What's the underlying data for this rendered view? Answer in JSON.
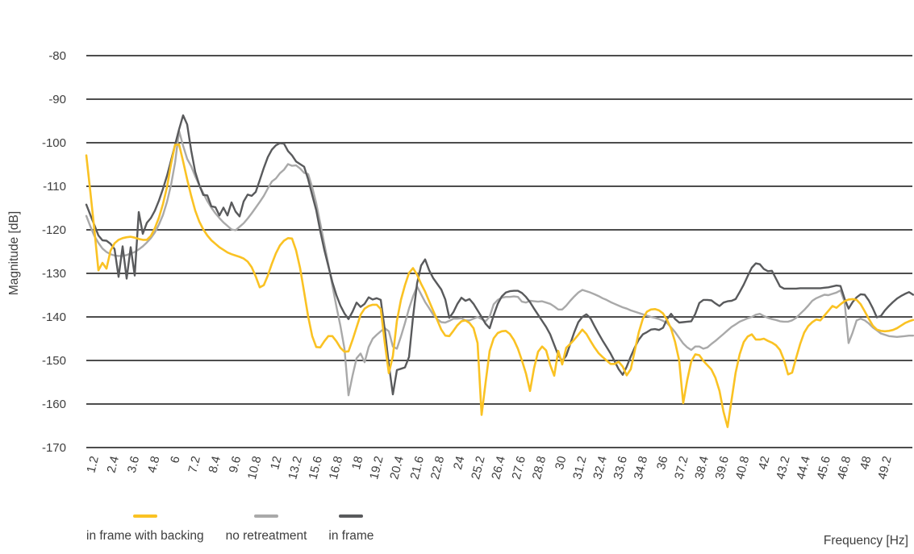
{
  "chart_data": {
    "type": "line",
    "title": "",
    "ylabel": "Magnitude [dB]",
    "xlabel": "Frequency [Hz]",
    "ylim": [
      -170,
      -80
    ],
    "y_tick_labels": [
      "-80",
      "-90",
      "-100",
      "-110",
      "-120",
      "-130",
      "-140",
      "-150",
      "-160",
      "-170"
    ],
    "x_tick_labels": [
      "1.2",
      "2.4",
      "3.6",
      "4.8",
      "6",
      "7.2",
      "8.4",
      "9.6",
      "10.8",
      "12",
      "13.2",
      "15.6",
      "16.8",
      "18",
      "19.2",
      "20.4",
      "21.6",
      "22.8",
      "24",
      "25.2",
      "26.4",
      "27.6",
      "28.8",
      "30",
      "31.2",
      "32.4",
      "33.6",
      "34.8",
      "36",
      "37.2",
      "38.4",
      "39.6",
      "40.8",
      "42",
      "43.2",
      "44.4",
      "45.6",
      "46.8",
      "48",
      "49.2"
    ],
    "grid": "horizontal",
    "legend_position": "bottom-left",
    "colors": {
      "grid": "#4d4d4d",
      "text": "#3e3e3e",
      "in_frame_with_backing": "#fac223",
      "no_retreatment": "#a9a9a9",
      "in_frame": "#595a5c"
    },
    "sampling": {
      "note": "values are magnitude in dB sampled uniformly across the categorical x-axis; x position of sample k = start_tick_index + k * tick_index_step, in units of x-tick indices (ticks evenly spaced)",
      "start_tick_index": -0.437,
      "tick_index_step": 0.1984
    },
    "series": [
      {
        "name": "in frame with backing",
        "color": "#fac223",
        "values": [
          -102.9,
          -111.3,
          -120.0,
          -129.3,
          -127.6,
          -128.9,
          -124.8,
          -123.1,
          -122.3,
          -121.9,
          -121.7,
          -121.6,
          -121.8,
          -122.1,
          -122.3,
          -122.3,
          -121.4,
          -119.6,
          -117.2,
          -114.1,
          -110.2,
          -104.9,
          -100.5,
          -100.4,
          -104.3,
          -108.4,
          -112.2,
          -115.6,
          -118.1,
          -119.9,
          -121.3,
          -122.4,
          -123.2,
          -124.0,
          -124.6,
          -125.2,
          -125.6,
          -125.9,
          -126.2,
          -126.6,
          -127.3,
          -128.6,
          -130.7,
          -133.2,
          -132.7,
          -130.5,
          -127.8,
          -125.4,
          -123.6,
          -122.5,
          -121.9,
          -122.0,
          -124.7,
          -128.8,
          -134.3,
          -139.9,
          -144.4,
          -146.9,
          -147.0,
          -145.6,
          -144.4,
          -144.4,
          -145.6,
          -147.1,
          -148.0,
          -147.9,
          -145.3,
          -142.4,
          -139.5,
          -138.1,
          -137.5,
          -137.2,
          -137.2,
          -138.2,
          -146.0,
          -152.9,
          -149.0,
          -140.9,
          -136.1,
          -132.7,
          -129.9,
          -128.8,
          -130.3,
          -132.4,
          -134.2,
          -136.4,
          -138.6,
          -140.7,
          -142.9,
          -144.3,
          -144.4,
          -143.2,
          -141.9,
          -141.0,
          -140.8,
          -141.4,
          -142.6,
          -146.0,
          -162.5,
          -155.0,
          -147.8,
          -144.9,
          -143.7,
          -143.3,
          -143.2,
          -143.9,
          -145.3,
          -147.3,
          -150.0,
          -153.0,
          -157.0,
          -151.8,
          -148.0,
          -146.8,
          -147.7,
          -151.0,
          -153.5,
          -147.8,
          -150.9,
          -147.1,
          -146.2,
          -145.2,
          -144.1,
          -142.9,
          -143.9,
          -145.5,
          -147.0,
          -148.3,
          -149.2,
          -150.0,
          -150.8,
          -150.8,
          -150.3,
          -151.4,
          -153.4,
          -152.0,
          -147.7,
          -143.5,
          -140.4,
          -138.8,
          -138.3,
          -138.2,
          -138.5,
          -139.2,
          -140.7,
          -142.7,
          -145.8,
          -150.0,
          -159.8,
          -154.5,
          -150.2,
          -148.6,
          -148.8,
          -150.1,
          -151.1,
          -152.1,
          -154.0,
          -157.0,
          -161.8,
          -165.3,
          -159.0,
          -152.8,
          -148.6,
          -145.8,
          -144.5,
          -144.0,
          -145.2,
          -145.2,
          -145.0,
          -145.5,
          -145.9,
          -146.5,
          -147.6,
          -149.9,
          -153.2,
          -152.8,
          -149.4,
          -146.2,
          -143.6,
          -142.1,
          -141.2,
          -140.6,
          -140.8,
          -139.7,
          -138.6,
          -137.5,
          -137.9,
          -137.1,
          -136.4,
          -136.0,
          -135.9,
          -136.1,
          -137.1,
          -138.7,
          -140.4,
          -142.0,
          -142.9,
          -143.2,
          -143.3,
          -143.2,
          -143.0,
          -142.6,
          -142.0,
          -141.4,
          -141.0,
          -140.7
        ]
      },
      {
        "name": "no retreatment",
        "color": "#a9a9a9",
        "values": [
          -116.8,
          -119.2,
          -121.4,
          -123.0,
          -124.3,
          -125.1,
          -125.6,
          -125.9,
          -126.0,
          -126.0,
          -125.8,
          -125.4,
          -125.1,
          -124.5,
          -123.8,
          -122.9,
          -121.9,
          -120.6,
          -118.8,
          -116.6,
          -113.6,
          -109.7,
          -104.6,
          -97.3,
          -100.7,
          -103.7,
          -105.4,
          -107.7,
          -109.7,
          -111.6,
          -113.4,
          -114.9,
          -116.2,
          -117.3,
          -118.3,
          -119.1,
          -119.9,
          -120.1,
          -119.3,
          -118.5,
          -117.4,
          -116.2,
          -114.9,
          -113.6,
          -112.2,
          -110.5,
          -108.9,
          -108.2,
          -107.0,
          -106.2,
          -104.9,
          -105.3,
          -105.2,
          -105.9,
          -106.9,
          -107.2,
          -110.2,
          -113.9,
          -118.5,
          -123.2,
          -127.9,
          -132.8,
          -137.6,
          -142.1,
          -147.3,
          -158.0,
          -153.5,
          -149.5,
          -148.4,
          -150.4,
          -146.9,
          -145.0,
          -144.1,
          -143.3,
          -142.6,
          -143.3,
          -146.8,
          -147.3,
          -144.5,
          -141.4,
          -138.1,
          -135.3,
          -133.0,
          -134.8,
          -136.6,
          -138.0,
          -139.5,
          -140.5,
          -141.2,
          -141.3,
          -140.9,
          -140.4,
          -140.4,
          -140.3,
          -140.8,
          -140.8,
          -140.4,
          -140.0,
          -140.5,
          -141.0,
          -139.9,
          -137.1,
          -136.1,
          -135.6,
          -135.4,
          -135.4,
          -135.3,
          -135.4,
          -136.5,
          -136.7,
          -136.3,
          -136.4,
          -136.5,
          -136.4,
          -136.7,
          -137.0,
          -137.6,
          -138.3,
          -138.3,
          -137.4,
          -136.3,
          -135.3,
          -134.4,
          -133.8,
          -134.1,
          -134.4,
          -134.8,
          -135.2,
          -135.7,
          -136.1,
          -136.6,
          -137.0,
          -137.4,
          -137.8,
          -138.1,
          -138.5,
          -138.8,
          -139.1,
          -139.4,
          -139.7,
          -140.0,
          -140.2,
          -140.5,
          -140.9,
          -141.4,
          -142.4,
          -143.5,
          -144.8,
          -146.1,
          -147.0,
          -147.6,
          -146.8,
          -146.8,
          -147.3,
          -147.0,
          -146.2,
          -145.5,
          -144.7,
          -143.9,
          -143.1,
          -142.3,
          -141.7,
          -141.1,
          -140.7,
          -140.3,
          -140.0,
          -139.5,
          -139.3,
          -139.8,
          -140.2,
          -140.5,
          -140.7,
          -141.0,
          -141.1,
          -141.1,
          -140.8,
          -140.2,
          -139.3,
          -138.4,
          -137.4,
          -136.3,
          -135.7,
          -135.3,
          -134.9,
          -135.0,
          -134.7,
          -134.4,
          -133.9,
          -136.5,
          -146.0,
          -143.6,
          -140.8,
          -140.4,
          -140.8,
          -141.5,
          -142.4,
          -143.1,
          -143.8,
          -144.1,
          -144.4,
          -144.5,
          -144.6,
          -144.5,
          -144.4,
          -144.3,
          -144.3
        ]
      },
      {
        "name": "in frame",
        "color": "#595a5c",
        "values": [
          -114.2,
          -116.6,
          -118.9,
          -121.3,
          -122.4,
          -122.5,
          -123.2,
          -124.4,
          -130.8,
          -123.8,
          -131.2,
          -124.0,
          -130.5,
          -115.9,
          -120.9,
          -118.4,
          -117.3,
          -115.6,
          -113.3,
          -110.6,
          -107.6,
          -104.1,
          -100.5,
          -96.9,
          -93.7,
          -95.8,
          -101.8,
          -106.7,
          -109.7,
          -112.0,
          -112.1,
          -114.6,
          -114.8,
          -116.7,
          -114.9,
          -116.7,
          -113.7,
          -115.8,
          -116.9,
          -113.5,
          -111.9,
          -112.2,
          -111.3,
          -108.6,
          -105.8,
          -103.3,
          -101.6,
          -100.6,
          -100.1,
          -100.2,
          -101.9,
          -102.9,
          -104.3,
          -104.9,
          -105.5,
          -108.4,
          -112.0,
          -115.5,
          -120.3,
          -124.6,
          -128.3,
          -132.0,
          -135.0,
          -137.4,
          -139.2,
          -140.5,
          -138.8,
          -136.7,
          -137.7,
          -137.0,
          -135.5,
          -136.0,
          -135.7,
          -136.1,
          -143.0,
          -150.9,
          -157.8,
          -152.2,
          -151.9,
          -151.6,
          -149.2,
          -140.0,
          -132.3,
          -128.2,
          -126.8,
          -129.3,
          -131.1,
          -132.4,
          -133.7,
          -136.0,
          -140.2,
          -138.9,
          -137.0,
          -135.6,
          -136.3,
          -135.9,
          -137.0,
          -138.5,
          -140.0,
          -141.6,
          -142.6,
          -139.6,
          -137.0,
          -135.3,
          -134.4,
          -134.1,
          -134.0,
          -134.0,
          -134.5,
          -135.4,
          -136.6,
          -138.1,
          -139.5,
          -140.9,
          -142.3,
          -144.0,
          -146.4,
          -148.8,
          -150.1,
          -148.9,
          -146.2,
          -143.5,
          -141.2,
          -140.0,
          -139.4,
          -140.3,
          -142.1,
          -143.8,
          -145.4,
          -146.9,
          -148.4,
          -150.2,
          -152.0,
          -153.3,
          -151.4,
          -149.1,
          -147.0,
          -145.2,
          -144.0,
          -143.5,
          -142.9,
          -142.8,
          -143.0,
          -142.5,
          -140.5,
          -139.3,
          -140.5,
          -141.3,
          -141.2,
          -141.1,
          -141.0,
          -139.3,
          -136.8,
          -136.1,
          -136.1,
          -136.2,
          -136.9,
          -137.5,
          -136.7,
          -136.4,
          -136.3,
          -135.9,
          -134.3,
          -132.6,
          -130.6,
          -128.7,
          -127.7,
          -127.9,
          -129.0,
          -129.5,
          -129.4,
          -131.2,
          -133.0,
          -133.5,
          -133.5,
          -133.5,
          -133.5,
          -133.4,
          -133.4,
          -133.4,
          -133.4,
          -133.4,
          -133.4,
          -133.3,
          -133.2,
          -133.0,
          -132.8,
          -132.9,
          -135.8,
          -138.1,
          -136.6,
          -135.5,
          -134.8,
          -134.9,
          -136.2,
          -138.0,
          -140.1,
          -139.8,
          -138.5,
          -137.5,
          -136.6,
          -135.8,
          -135.2,
          -134.7,
          -134.3,
          -134.9
        ]
      }
    ]
  }
}
